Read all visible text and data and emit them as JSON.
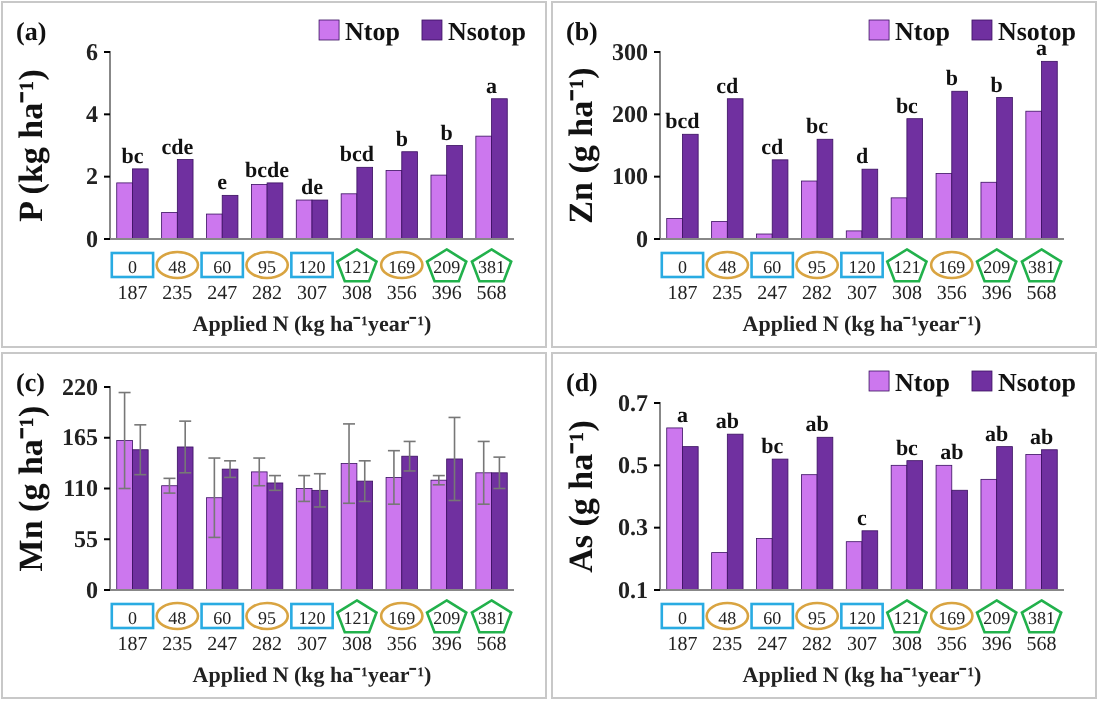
{
  "chart_data": [
    {
      "type": "bar",
      "title": "(a)",
      "ylabel": "P (kg ha⁻¹)",
      "xlabel": "Applied N (kg ha⁻¹year⁻¹)",
      "categories": [
        "0\n187",
        "48\n235",
        "60\n247",
        "95\n282",
        "120\n307",
        "121\n308",
        "169\n356",
        "209\n396",
        "381\n568"
      ],
      "ylim": [
        0,
        6
      ],
      "yticks": [
        0,
        2,
        4,
        6
      ],
      "legend": "top right",
      "series": [
        {
          "name": "Ntop",
          "color": "#cc77ee",
          "values": [
            1.8,
            0.85,
            0.8,
            1.75,
            1.25,
            1.45,
            2.2,
            2.05,
            3.3
          ]
        },
        {
          "name": "Nsotop",
          "color": "#7030a0",
          "values": [
            2.25,
            2.55,
            1.4,
            1.8,
            1.25,
            2.3,
            2.8,
            3.0,
            4.5
          ]
        }
      ],
      "annotations": [
        {
          "text": "bc",
          "x": "0\n187",
          "y": 2.25
        },
        {
          "text": "cde",
          "x": "48\n235",
          "y": 2.55
        },
        {
          "text": "e",
          "x": "60\n247",
          "y": 1.4
        },
        {
          "text": "bcde",
          "x": "95\n282",
          "y": 1.8
        },
        {
          "text": "de",
          "x": "120\n307",
          "y": 1.25
        },
        {
          "text": "bcd",
          "x": "121\n308",
          "y": 2.3
        },
        {
          "text": "b",
          "x": "169\n356",
          "y": 2.8
        },
        {
          "text": "b",
          "x": "209\n396",
          "y": 3.0
        },
        {
          "text": "a",
          "x": "381\n568",
          "y": 4.5
        }
      ]
    },
    {
      "type": "bar",
      "title": "(b)",
      "ylabel": "Zn (g ha⁻¹)",
      "xlabel": "Applied N (kg ha⁻¹year⁻¹)",
      "categories": [
        "0\n187",
        "48\n235",
        "60\n247",
        "95\n282",
        "120\n307",
        "121\n308",
        "169\n356",
        "209\n396",
        "381\n568"
      ],
      "ylim": [
        0,
        300
      ],
      "yticks": [
        0,
        100,
        200,
        300
      ],
      "legend": "top right",
      "series": [
        {
          "name": "Ntop",
          "color": "#cc77ee",
          "values": [
            33,
            28,
            8,
            93,
            13,
            66,
            105,
            91,
            205
          ]
        },
        {
          "name": "Nsotop",
          "color": "#7030a0",
          "values": [
            168,
            225,
            127,
            160,
            112,
            193,
            237,
            227,
            285
          ]
        }
      ],
      "annotations": [
        {
          "text": "bcd",
          "x": "0\n187",
          "y": 168
        },
        {
          "text": "cd",
          "x": "48\n235",
          "y": 225
        },
        {
          "text": "cd",
          "x": "60\n247",
          "y": 127
        },
        {
          "text": "bc",
          "x": "95\n282",
          "y": 160
        },
        {
          "text": "d",
          "x": "120\n307",
          "y": 112
        },
        {
          "text": "bc",
          "x": "121\n308",
          "y": 193
        },
        {
          "text": "b",
          "x": "169\n356",
          "y": 237
        },
        {
          "text": "b",
          "x": "209\n396",
          "y": 227
        },
        {
          "text": "a",
          "x": "381\n568",
          "y": 285
        }
      ]
    },
    {
      "type": "bar",
      "title": "(c)",
      "ylabel": "Mn (g ha⁻¹)",
      "xlabel": "Applied N (kg ha⁻¹year⁻¹)",
      "categories": [
        "0\n187",
        "48\n235",
        "60\n247",
        "95\n282",
        "120\n307",
        "121\n308",
        "169\n356",
        "209\n396",
        "381\n568"
      ],
      "ylim": [
        0,
        220
      ],
      "yticks": [
        0,
        55,
        110,
        165,
        220
      ],
      "series": [
        {
          "color": "#cc77ee",
          "values": [
            162,
            113,
            100,
            128,
            110,
            137,
            122,
            119,
            127
          ],
          "errors": [
            52,
            8,
            43,
            15,
            14,
            43,
            29,
            5,
            34
          ]
        },
        {
          "color": "#7030a0",
          "values": [
            152,
            155,
            131,
            116,
            108,
            118,
            145,
            142,
            127
          ],
          "errors": [
            27,
            28,
            9,
            8,
            18,
            22,
            16,
            45,
            17
          ]
        }
      ]
    },
    {
      "type": "bar",
      "title": "(d)",
      "ylabel": "As (g ha⁻¹)",
      "xlabel": "Applied N (kg ha⁻¹year⁻¹)",
      "categories": [
        "0\n187",
        "48\n235",
        "60\n247",
        "95\n282",
        "120\n307",
        "121\n308",
        "169\n356",
        "209\n396",
        "381\n568"
      ],
      "ylim": [
        0.1,
        0.7
      ],
      "yticks": [
        0.1,
        0.3,
        0.5,
        0.7
      ],
      "legend": "top right",
      "series": [
        {
          "name": "Ntop",
          "color": "#cc77ee",
          "values": [
            0.62,
            0.22,
            0.265,
            0.47,
            0.255,
            0.5,
            0.5,
            0.455,
            0.535
          ]
        },
        {
          "name": "Nsotop",
          "color": "#7030a0",
          "values": [
            0.56,
            0.6,
            0.52,
            0.59,
            0.29,
            0.515,
            0.42,
            0.56,
            0.55
          ]
        }
      ],
      "annotations": [
        {
          "text": "a",
          "x": "0\n187",
          "y": 0.62
        },
        {
          "text": "ab",
          "x": "48\n235",
          "y": 0.6
        },
        {
          "text": "bc",
          "x": "60\n247",
          "y": 0.52
        },
        {
          "text": "ab",
          "x": "95\n282",
          "y": 0.59
        },
        {
          "text": "c",
          "x": "120\n307",
          "y": 0.29
        },
        {
          "text": "bc",
          "x": "121\n308",
          "y": 0.515
        },
        {
          "text": "ab",
          "x": "169\n356",
          "y": 0.5
        },
        {
          "text": "ab",
          "x": "209\n396",
          "y": 0.56
        },
        {
          "text": "ab",
          "x": "381\n568",
          "y": 0.55
        }
      ]
    }
  ]
}
